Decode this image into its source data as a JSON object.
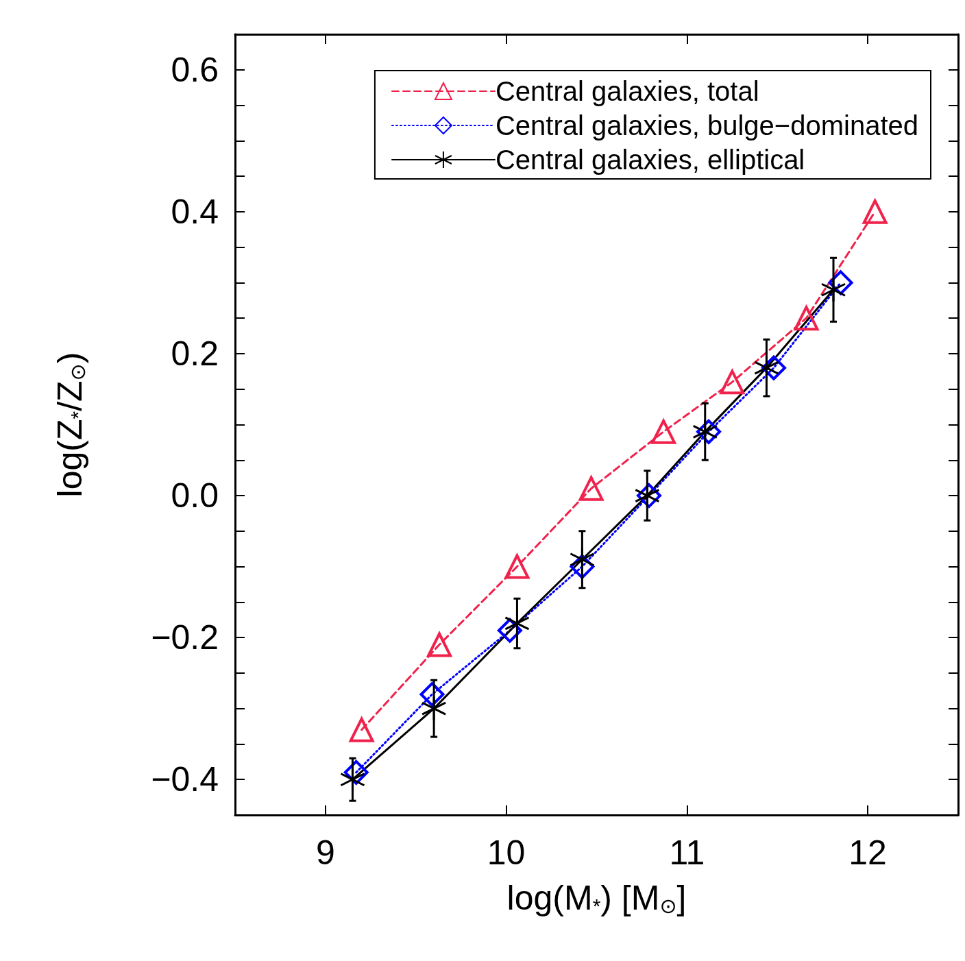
{
  "chart_data": {
    "type": "line",
    "xlabel": "log(M$_{*}$) [M$_{⊙}$]",
    "ylabel": "log(Z$_{*}$/Z$_{⊙}$)",
    "xlim": [
      8.5,
      12.5
    ],
    "xticks": [
      9,
      10,
      11,
      12
    ],
    "ylim": [
      -0.45,
      0.65
    ],
    "yticks": [
      {
        "value": -0.45,
        "label": null
      },
      {
        "value": -0.4,
        "label": "−0.4"
      },
      {
        "value": -0.35,
        "label": null
      },
      {
        "value": -0.3,
        "label": null
      },
      {
        "value": -0.25,
        "label": null
      },
      {
        "value": -0.2,
        "label": "−0.2"
      },
      {
        "value": -0.15,
        "label": null
      },
      {
        "value": -0.1,
        "label": null
      },
      {
        "value": -0.05,
        "label": null
      },
      {
        "value": 0,
        "label": "0.0"
      },
      {
        "value": 0.05,
        "label": null
      },
      {
        "value": 0.1,
        "label": null
      },
      {
        "value": 0.15,
        "label": null
      },
      {
        "value": 0.2,
        "label": "0.2"
      },
      {
        "value": 0.25,
        "label": null
      },
      {
        "value": 0.3,
        "label": null
      },
      {
        "value": 0.35,
        "label": null
      },
      {
        "value": 0.4,
        "label": "0.4"
      },
      {
        "value": 0.45,
        "label": null
      },
      {
        "value": 0.5,
        "label": null
      },
      {
        "value": 0.55,
        "label": null
      },
      {
        "value": 0.6,
        "label": "0.6"
      },
      {
        "value": 0.65,
        "label": null
      }
    ],
    "legend": "top right",
    "grid": false,
    "series": [
      {
        "name": "Central galaxies, total",
        "color": "#f0224c",
        "marker": "triangle",
        "line_style": "dashed",
        "x": [
          9.2,
          9.63,
          10.06,
          10.47,
          10.87,
          11.25,
          11.66,
          12.04
        ],
        "values": [
          -0.33,
          -0.21,
          -0.1,
          0.01,
          0.09,
          0.16,
          0.25,
          0.4
        ]
      },
      {
        "name": "Central galaxies, bulge−dominated",
        "color": "#0000ff",
        "marker": "diamond",
        "line_style": "dotted",
        "x": [
          9.17,
          9.59,
          10.02,
          10.42,
          10.79,
          11.12,
          11.48,
          11.85
        ],
        "values": [
          -0.39,
          -0.28,
          -0.19,
          -0.1,
          0.0,
          0.09,
          0.18,
          0.3
        ]
      },
      {
        "name": "Central galaxies, elliptical",
        "color": "#000000",
        "marker": "cross",
        "line_style": "solid",
        "x": [
          9.15,
          9.6,
          10.06,
          10.42,
          10.78,
          11.1,
          11.44,
          11.81
        ],
        "values": [
          -0.4,
          -0.3,
          -0.18,
          -0.09,
          0.0,
          0.09,
          0.18,
          0.29
        ],
        "errors": [
          0.03,
          0.04,
          0.035,
          0.04,
          0.035,
          0.04,
          0.04,
          0.045
        ]
      }
    ]
  }
}
